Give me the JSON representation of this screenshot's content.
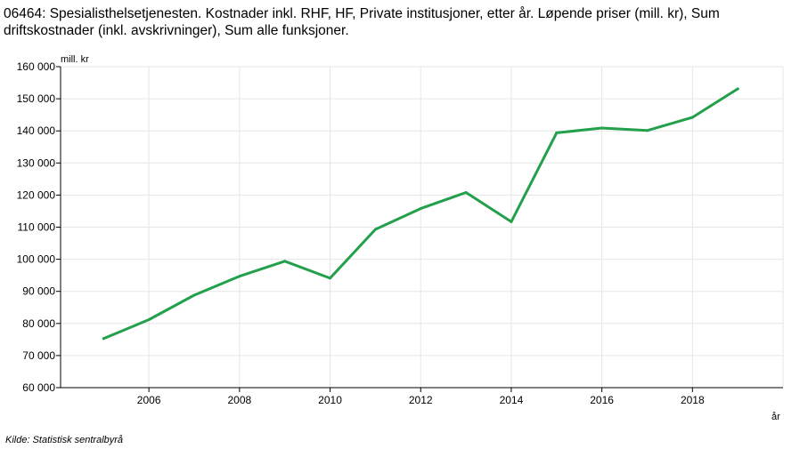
{
  "chart_data": {
    "type": "line",
    "title": "06464: Spesialisthelsetjenesten. Kostnader inkl. RHF, HF, Private institusjoner, etter år. Løpende priser (mill. kr), Sum driftskostnader (inkl. avskrivninger), Sum alle funksjoner.",
    "xlabel": "år",
    "ylabel": "mill. kr",
    "xlim": [
      2004.05,
      2020.0
    ],
    "ylim": [
      60000,
      160000
    ],
    "x_ticks": [
      "2006",
      "2008",
      "2010",
      "2012",
      "2014",
      "2016",
      "2018"
    ],
    "y_ticks": [
      "60 000",
      "70 000",
      "80 000",
      "90 000",
      "100 000",
      "110 000",
      "120 000",
      "130 000",
      "140 000",
      "150 000",
      "160 000"
    ],
    "grid": true,
    "series": [
      {
        "color": "#23a04b",
        "x": [
          2005,
          2006,
          2007,
          2008,
          2009,
          2010,
          2011,
          2012,
          2013,
          2014,
          2015,
          2016,
          2017,
          2018,
          2019
        ],
        "y": [
          75300,
          81200,
          88800,
          94700,
          99400,
          94100,
          109300,
          115800,
          120800,
          111700,
          139400,
          140900,
          140100,
          144200,
          153100
        ]
      }
    ]
  },
  "source": "Kilde:  Statistisk sentralbyrå"
}
